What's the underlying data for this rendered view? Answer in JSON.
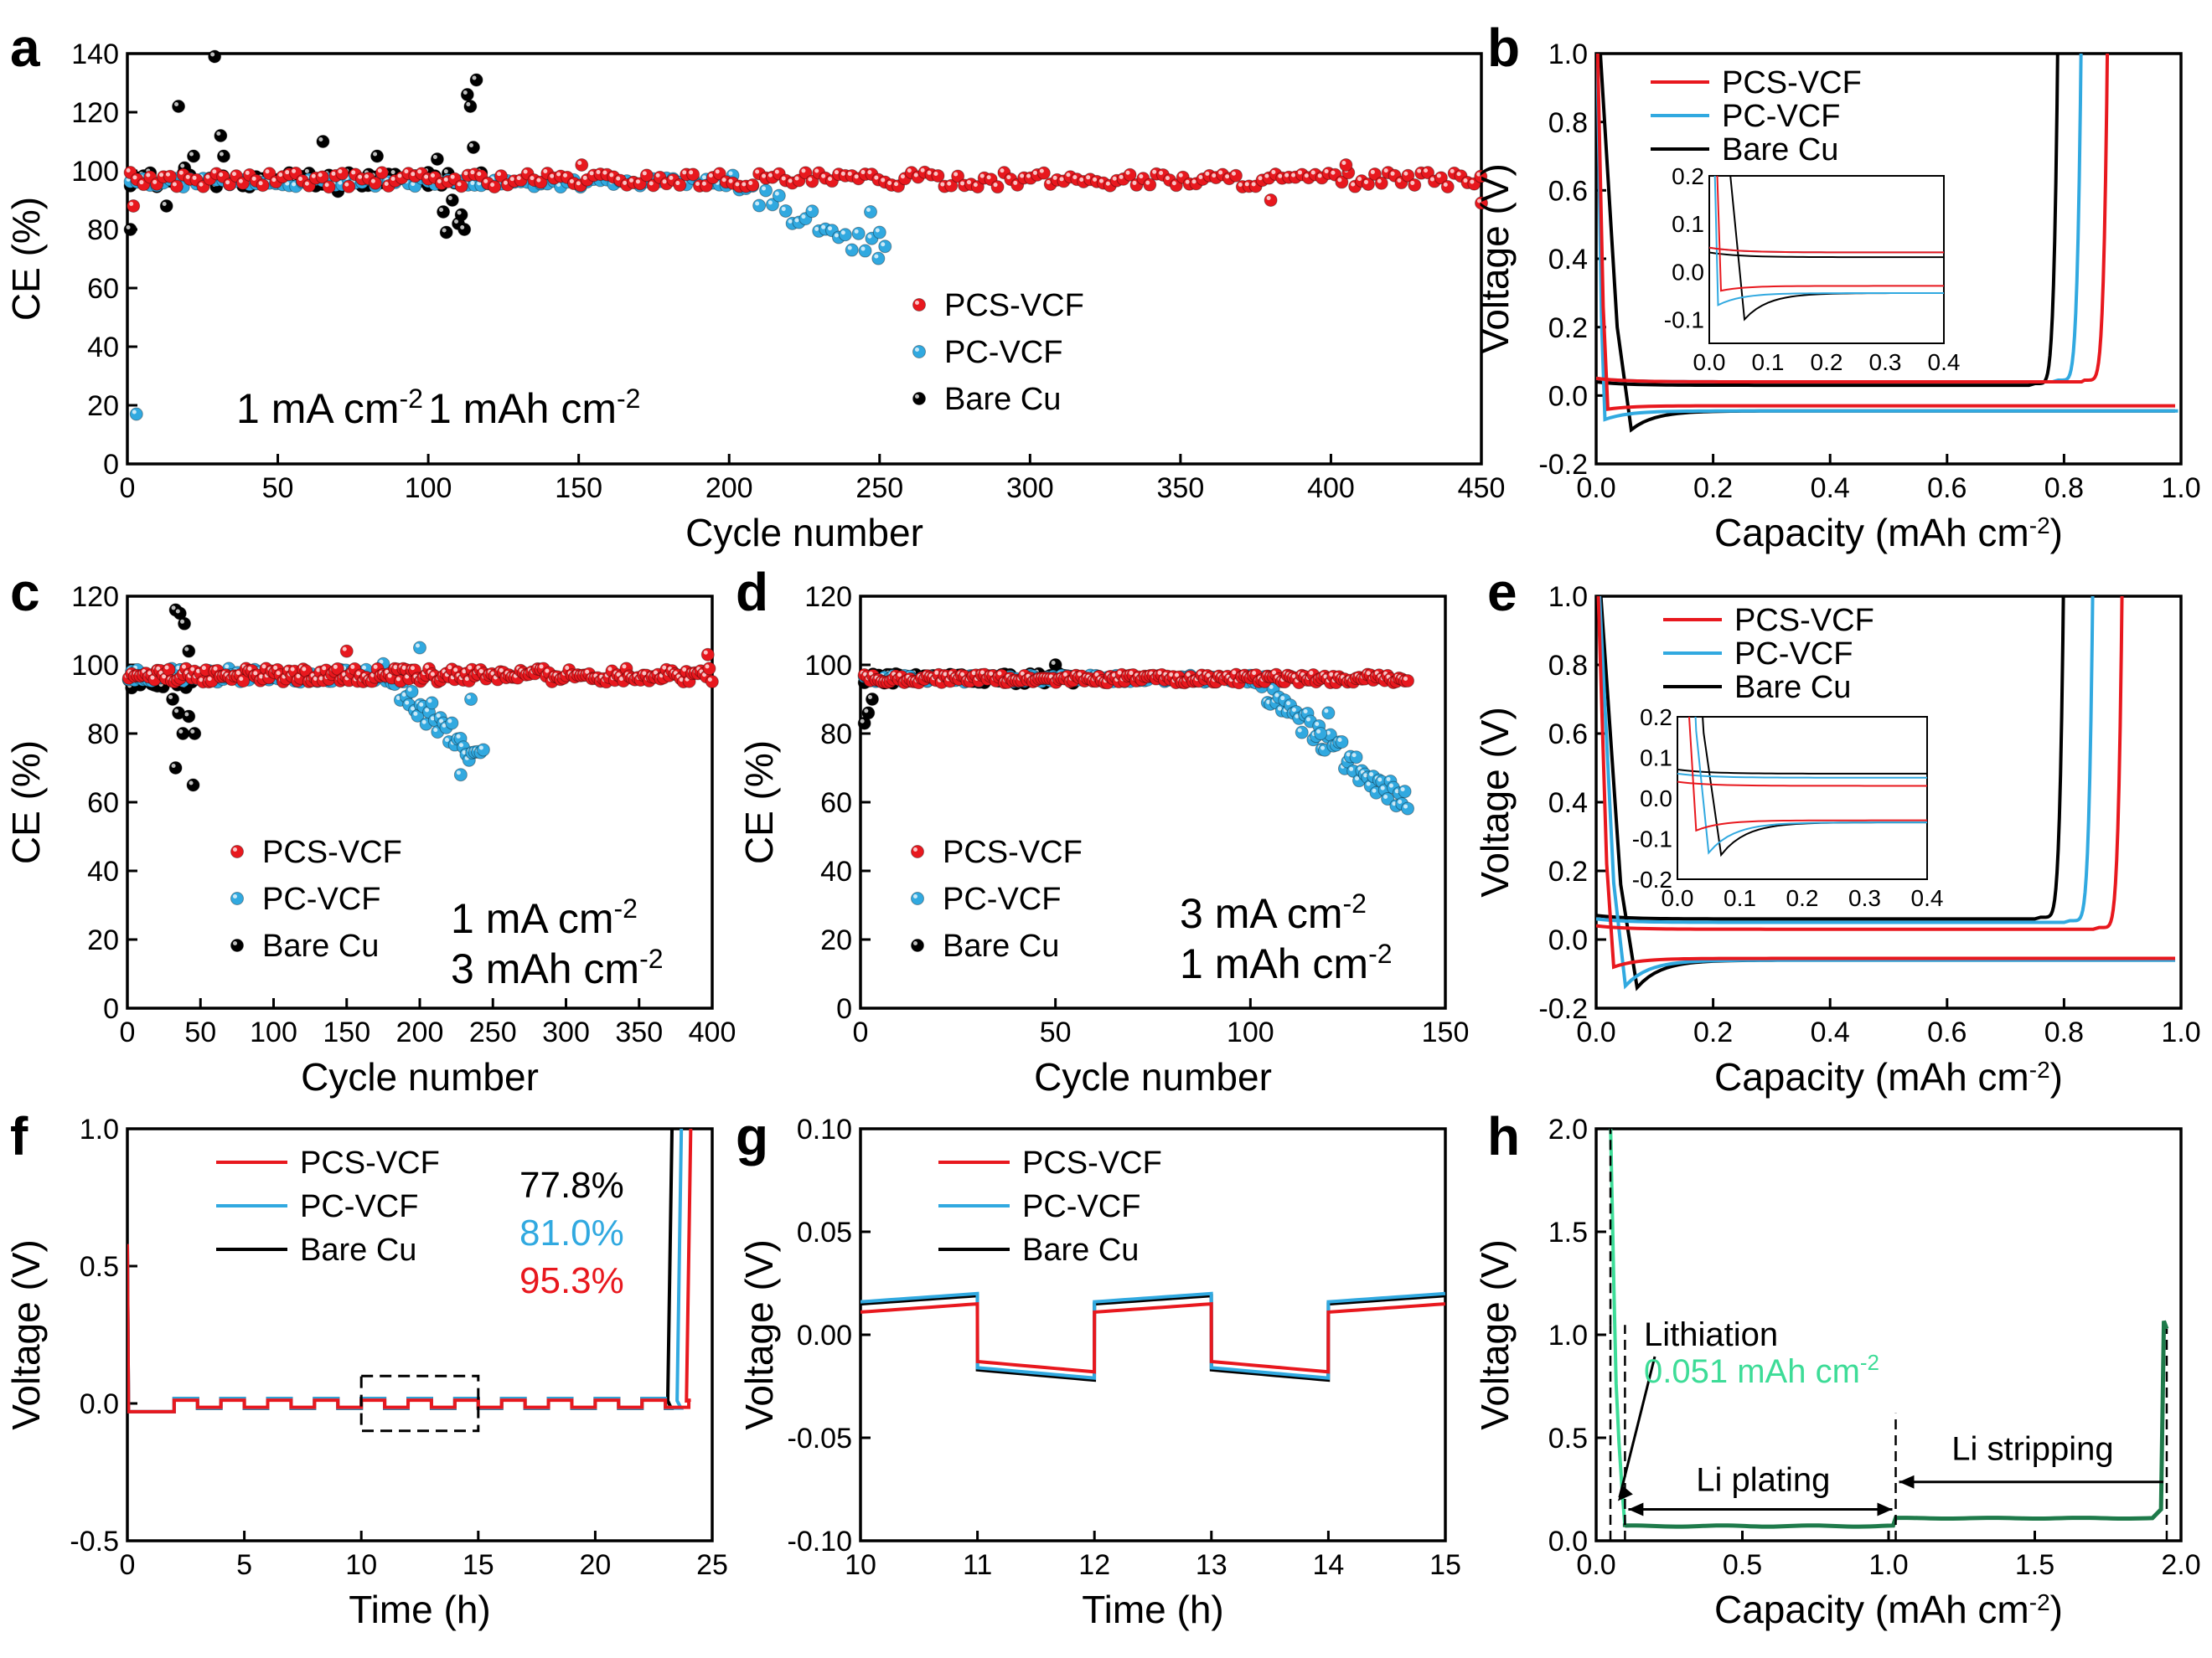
{
  "colors": {
    "pcs": "#e8181e",
    "pc": "#31a9e0",
    "bare": "#000000",
    "lith": "#3ddc97",
    "hline": "#1e7a4a"
  },
  "chart_data": [
    {
      "id": "a",
      "type": "scatter",
      "panel_label": "a",
      "xlabel": "Cycle number",
      "ylabel": "CE (%)",
      "xlim": [
        0,
        450
      ],
      "ylim": [
        0,
        140
      ],
      "xticks": [
        "0",
        "50",
        "100",
        "150",
        "200",
        "250",
        "300",
        "350",
        "400",
        "450"
      ],
      "yticks": [
        "0",
        "20",
        "40",
        "60",
        "80",
        "100",
        "120",
        "140"
      ],
      "legend": [
        "PCS-VCF",
        "PC-VCF",
        "Bare Cu"
      ],
      "annotation": [
        "1 mA cm",
        "-2",
        "1 mAh cm",
        "-2"
      ],
      "series": [
        {
          "name": "PCS-VCF",
          "end": 450,
          "base": 97,
          "amp": 2.5,
          "outliers": [
            [
              2,
              88
            ],
            [
              151,
              102
            ],
            [
              380,
              90
            ],
            [
              405,
              102
            ],
            [
              450,
              89
            ]
          ]
        },
        {
          "name": "PC-VCF",
          "end": 252,
          "base": 96,
          "amp": 1.5,
          "dip": [
            200,
            250,
            72
          ],
          "outliers": [
            [
              3,
              17
            ],
            [
              250,
              79
            ],
            [
              247,
              86
            ]
          ]
        },
        {
          "name": "Bare Cu",
          "end": 118,
          "base": 97,
          "amp": 2.5,
          "outliers": [
            [
              1,
              80
            ],
            [
              2,
              96
            ],
            [
              17,
              122
            ],
            [
              19,
              101
            ],
            [
              22,
              105
            ],
            [
              29,
              139
            ],
            [
              31,
              112
            ],
            [
              32,
              105
            ],
            [
              13,
              88
            ],
            [
              65,
              110
            ],
            [
              70,
              93
            ],
            [
              80,
              95
            ],
            [
              83,
              105
            ],
            [
              100,
              95
            ],
            [
              103,
              104
            ],
            [
              105,
              86
            ],
            [
              106,
              79
            ],
            [
              108,
              90
            ],
            [
              110,
              82
            ],
            [
              111,
              85
            ],
            [
              112,
              80
            ],
            [
              113,
              126
            ],
            [
              114,
              122
            ],
            [
              115,
              108
            ],
            [
              116,
              131
            ]
          ]
        }
      ]
    },
    {
      "id": "b",
      "type": "line",
      "panel_label": "b",
      "xlabel": "Capacity (mAh cm",
      "xlabel_sup": "-2",
      "xlabel_end": ")",
      "ylabel": "Voltage (V)",
      "xlim": [
        0,
        1
      ],
      "ylim": [
        -0.2,
        1.0
      ],
      "xticks": [
        "0.0",
        "0.2",
        "0.4",
        "0.6",
        "0.8",
        "1.0"
      ],
      "yticks": [
        "-0.2",
        "0.0",
        "0.2",
        "0.4",
        "0.6",
        "0.8",
        "1.0"
      ],
      "legend": [
        "PCS-VCF",
        "PC-VCF",
        "Bare Cu"
      ],
      "series": [
        {
          "name": "PCS-VCF",
          "dipx": 0.02,
          "dipv": -0.04,
          "plate": -0.03,
          "strip": 0.04,
          "endx": 0.875
        },
        {
          "name": "PC-VCF",
          "dipx": 0.015,
          "dipv": -0.07,
          "plate": -0.045,
          "strip": 0.04,
          "endx": 0.83
        },
        {
          "name": "Bare Cu",
          "dipx": 0.06,
          "dipv": -0.1,
          "plate": -0.045,
          "strip": 0.03,
          "endx": 0.79
        }
      ],
      "inset": {
        "xlim": [
          0,
          0.4
        ],
        "ylim": [
          -0.15,
          0.2
        ],
        "xticks": [
          "0.0",
          "0.1",
          "0.2",
          "0.3",
          "0.4"
        ],
        "yticks": [
          "-0.1",
          "0.0",
          "0.1",
          "0.2"
        ]
      }
    },
    {
      "id": "c",
      "type": "scatter",
      "panel_label": "c",
      "xlabel": "Cycle number",
      "ylabel": "CE (%)",
      "xlim": [
        0,
        400
      ],
      "ylim": [
        0,
        120
      ],
      "xticks": [
        "0",
        "50",
        "100",
        "150",
        "200",
        "250",
        "300",
        "350",
        "400"
      ],
      "yticks": [
        "0",
        "20",
        "40",
        "60",
        "80",
        "100",
        "120"
      ],
      "legend": [
        "PCS-VCF",
        "PC-VCF",
        "Bare Cu"
      ],
      "annotation": [
        "1 mA cm",
        "-2",
        "3 mAh cm",
        "-2"
      ],
      "series": [
        {
          "name": "PCS-VCF",
          "end": 400,
          "base": 97,
          "amp": 2,
          "outliers": [
            [
              150,
              104
            ],
            [
              397,
              103
            ]
          ]
        },
        {
          "name": "PC-VCF",
          "end": 245,
          "base": 97,
          "amp": 2,
          "dip": [
            175,
            245,
            72
          ],
          "outliers": [
            [
              200,
              105
            ],
            [
              235,
              90
            ],
            [
              228,
              68
            ]
          ]
        },
        {
          "name": "Bare Cu",
          "end": 46,
          "base": 96,
          "amp": 3,
          "outliers": [
            [
              33,
              116
            ],
            [
              36,
              115
            ],
            [
              39,
              112
            ],
            [
              42,
              104
            ],
            [
              31,
              90
            ],
            [
              33,
              70
            ],
            [
              38,
              80
            ],
            [
              42,
              85
            ],
            [
              45,
              65
            ],
            [
              46,
              80
            ],
            [
              35,
              86
            ]
          ]
        }
      ]
    },
    {
      "id": "d",
      "type": "scatter",
      "panel_label": "d",
      "xlabel": "Cycle number",
      "ylabel": "CE (%)",
      "xlim": [
        0,
        150
      ],
      "ylim": [
        0,
        120
      ],
      "xticks": [
        "0",
        "50",
        "100",
        "150"
      ],
      "yticks": [
        "0",
        "20",
        "40",
        "60",
        "80",
        "100",
        "120"
      ],
      "legend": [
        "PCS-VCF",
        "PC-VCF",
        "Bare Cu"
      ],
      "annotation": [
        "3 mA cm",
        "-2",
        "1 mAh cm",
        "-2"
      ],
      "series": [
        {
          "name": "PCS-VCF",
          "end": 141,
          "base": 96,
          "amp": 1.2,
          "outliers": []
        },
        {
          "name": "PC-VCF",
          "end": 141,
          "base": 96,
          "amp": 1,
          "dip": [
            100,
            141,
            58
          ],
          "outliers": [
            [
              120,
              86
            ],
            [
              118,
              80
            ]
          ]
        },
        {
          "name": "Bare Cu",
          "end": 56,
          "base": 96,
          "amp": 1.5,
          "outliers": [
            [
              1,
              83
            ],
            [
              2,
              86
            ],
            [
              3,
              90
            ],
            [
              50,
              100
            ]
          ]
        }
      ]
    },
    {
      "id": "e",
      "type": "line",
      "panel_label": "e",
      "xlabel": "Capacity (mAh cm",
      "xlabel_sup": "-2",
      "xlabel_end": ")",
      "ylabel": "Voltage (V)",
      "xlim": [
        0,
        1
      ],
      "ylim": [
        -0.2,
        1.0
      ],
      "xticks": [
        "0.0",
        "0.2",
        "0.4",
        "0.6",
        "0.8",
        "1.0"
      ],
      "yticks": [
        "-0.2",
        "0.0",
        "0.2",
        "0.4",
        "0.6",
        "0.8",
        "1.0"
      ],
      "legend": [
        "PCS-VCF",
        "PC-VCF",
        "Bare Cu"
      ],
      "series": [
        {
          "name": "PCS-VCF",
          "dipx": 0.03,
          "dipv": -0.08,
          "plate": -0.055,
          "strip": 0.03,
          "endx": 0.9
        },
        {
          "name": "PC-VCF",
          "dipx": 0.05,
          "dipv": -0.135,
          "plate": -0.06,
          "strip": 0.05,
          "endx": 0.85
        },
        {
          "name": "Bare Cu",
          "dipx": 0.07,
          "dipv": -0.14,
          "plate": -0.06,
          "strip": 0.06,
          "endx": 0.8
        }
      ],
      "inset": {
        "xlim": [
          0,
          0.4
        ],
        "ylim": [
          -0.2,
          0.2
        ],
        "xticks": [
          "0.0",
          "0.1",
          "0.2",
          "0.3",
          "0.4"
        ],
        "yticks": [
          "-0.2",
          "-0.1",
          "0.0",
          "0.1",
          "0.2"
        ]
      }
    },
    {
      "id": "f",
      "type": "line",
      "panel_label": "f",
      "xlabel": "Time (h)",
      "ylabel": "Voltage (V)",
      "xlim": [
        0,
        25
      ],
      "ylim": [
        -0.5,
        1.0
      ],
      "xticks": [
        "0",
        "5",
        "10",
        "15",
        "20",
        "25"
      ],
      "yticks": [
        "-0.5",
        "0.0",
        "0.5",
        "1.0"
      ],
      "legend": [
        "PCS-VCF",
        "PC-VCF",
        "Bare Cu"
      ],
      "percentages": [
        {
          "text": "77.8%",
          "series": "Bare Cu"
        },
        {
          "text": "81.0%",
          "series": "PC-VCF"
        },
        {
          "text": "95.3%",
          "series": "PCS-VCF"
        }
      ],
      "series": [
        {
          "name": "PCS-VCF",
          "end": 24.1,
          "high": 0.012,
          "low": -0.014
        },
        {
          "name": "PC-VCF",
          "end": 23.7,
          "high": 0.018,
          "low": -0.017
        },
        {
          "name": "Bare Cu",
          "end": 23.3,
          "high": 0.018,
          "low": -0.018
        }
      ],
      "box": [
        10,
        15,
        -0.1,
        0.1
      ]
    },
    {
      "id": "g",
      "type": "line",
      "panel_label": "g",
      "xlabel": "Time (h)",
      "ylabel": "Voltage (V)",
      "xlim": [
        10,
        15
      ],
      "ylim": [
        -0.1,
        0.1
      ],
      "xticks": [
        "10",
        "11",
        "12",
        "13",
        "14",
        "15"
      ],
      "yticks": [
        "-0.10",
        "-0.05",
        "0.00",
        "0.05",
        "0.10"
      ],
      "legend": [
        "PCS-VCF",
        "PC-VCF",
        "Bare Cu"
      ],
      "series": [
        {
          "name": "PCS-VCF",
          "high": 0.011,
          "low": -0.013
        },
        {
          "name": "PC-VCF",
          "high": 0.016,
          "low": -0.016
        },
        {
          "name": "Bare Cu",
          "high": 0.015,
          "low": -0.017
        }
      ]
    },
    {
      "id": "h",
      "type": "line",
      "panel_label": "h",
      "xlabel": "Capacity (mAh cm",
      "xlabel_sup": "-2",
      "xlabel_end": ")",
      "ylabel": "Voltage (V)",
      "xlim": [
        -0.05,
        2.0
      ],
      "ylim": [
        -0.1,
        2.0
      ],
      "xticks": [
        "0.0",
        "0.5",
        "1.0",
        "1.5",
        "2.0"
      ],
      "yticks": [
        "0.0",
        "0.5",
        "1.0",
        "1.5",
        "2.0"
      ],
      "lithiation_capacity": 0.051,
      "labels": {
        "lithiation": "Lithiation",
        "lithiation_value": "0.051 mAh cm",
        "lithiation_sup": "-2",
        "plating": "Li plating",
        "stripping": "Li stripping"
      }
    }
  ]
}
